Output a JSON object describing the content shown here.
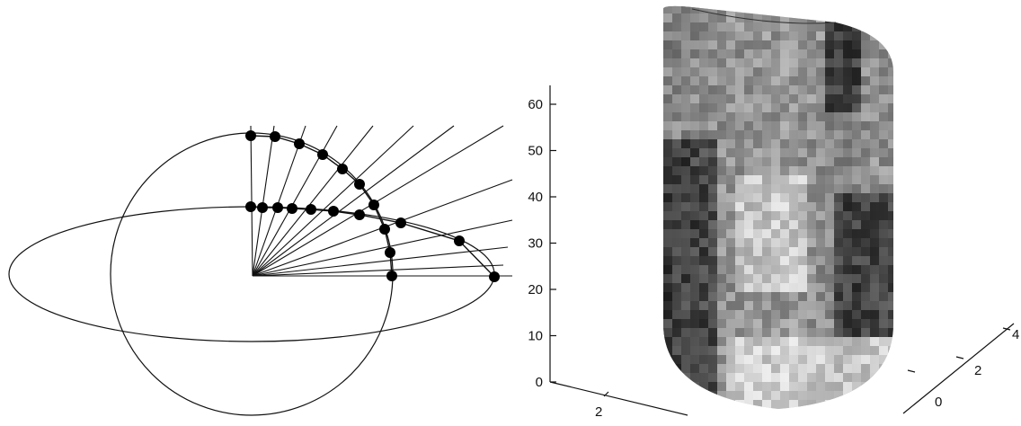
{
  "left_diagram": {
    "ray_count": 13
  },
  "axis_3d": {
    "z_ticks": [
      "0",
      "10",
      "20",
      "30",
      "40",
      "50",
      "60"
    ],
    "x_ticks": [
      "2"
    ],
    "y_ticks": [
      "0",
      "2",
      "4"
    ]
  },
  "surface": {
    "colors": {
      "dark": "#141414",
      "light": "#f2f2f2",
      "mid": "#8a8a8a"
    }
  }
}
